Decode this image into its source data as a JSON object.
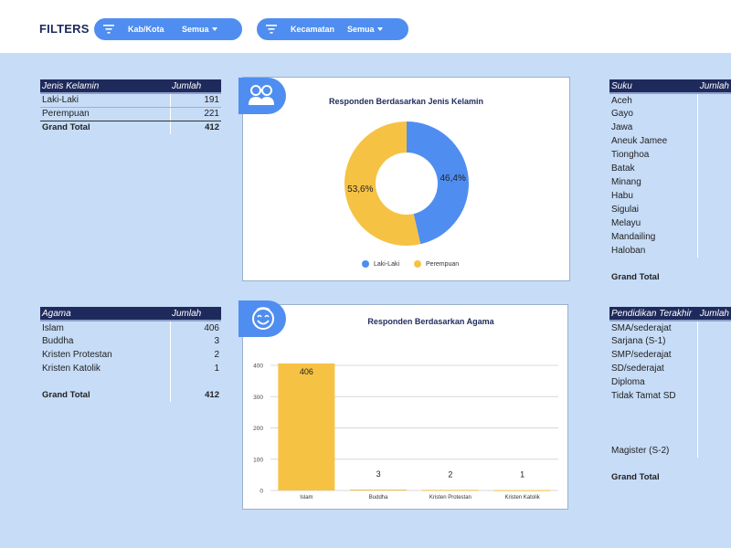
{
  "filters": {
    "title": "FILTERS",
    "items": [
      {
        "name": "Kab/Kota",
        "value": "Semua"
      },
      {
        "name": "Kecamatan",
        "value": "Semua"
      }
    ]
  },
  "gender_table": {
    "headers": [
      "Jenis Kelamin",
      "Jumlah"
    ],
    "rows": [
      {
        "label": "Laki-Laki",
        "value": "191"
      },
      {
        "label": "Perempuan",
        "value": "221"
      }
    ],
    "grand_total_label": "Grand Total",
    "grand_total_value": "412"
  },
  "agama_table": {
    "headers": [
      "Agama",
      "Jumlah"
    ],
    "rows": [
      {
        "label": "Islam",
        "value": "406"
      },
      {
        "label": "Buddha",
        "value": "3"
      },
      {
        "label": "Kristen Protestan",
        "value": "2"
      },
      {
        "label": "Kristen Katolik",
        "value": "1"
      }
    ],
    "grand_total_label": "Grand Total",
    "grand_total_value": "412"
  },
  "suku_table": {
    "headers": [
      "Suku",
      "Jumlah"
    ],
    "rows": [
      "Aceh",
      "Gayo",
      "Jawa",
      "Aneuk Jamee",
      "Tionghoa",
      "Batak",
      "Minang",
      "Habu",
      "Sigulai",
      "Melayu",
      "Mandailing",
      "Haloban"
    ],
    "grand_total_label": "Grand Total"
  },
  "pendidikan_table": {
    "headers": [
      "Pendidikan Terakhir",
      "Jumlah"
    ],
    "rows": [
      "SMA/sederajat",
      "Sarjana (S-1)",
      "SMP/sederajat",
      "SD/sederajat",
      "Diploma",
      "Tidak Tamat SD",
      "",
      "",
      "",
      "Magister (S-2)"
    ],
    "grand_total_label": "Grand Total"
  },
  "gender_chart": {
    "badge_icon": "people-icon",
    "chart_data": {
      "type": "pie",
      "title": "Responden Berdasarkan Jenis Kelamin",
      "labels": [
        "Laki-Laki",
        "Perempuan"
      ],
      "values": [
        46.4,
        53.6
      ],
      "value_labels": [
        "46,4%",
        "53,6%"
      ],
      "colors": [
        "#4f8ef0",
        "#f6c244"
      ],
      "legend": "bottom",
      "donut": true
    }
  },
  "agama_chart": {
    "badge_icon": "smiley-icon",
    "chart_data": {
      "type": "bar",
      "title": "Responden Berdasarkan Agama",
      "categories": [
        "Islam",
        "Buddha",
        "Kristen Protestan",
        "Kristen Katolik"
      ],
      "values": [
        406,
        3,
        2,
        1
      ],
      "ylim": [
        0,
        400
      ],
      "yticks": [
        "0",
        "100",
        "200",
        "300",
        "400"
      ],
      "grid": true,
      "color": "#f6c244"
    }
  }
}
